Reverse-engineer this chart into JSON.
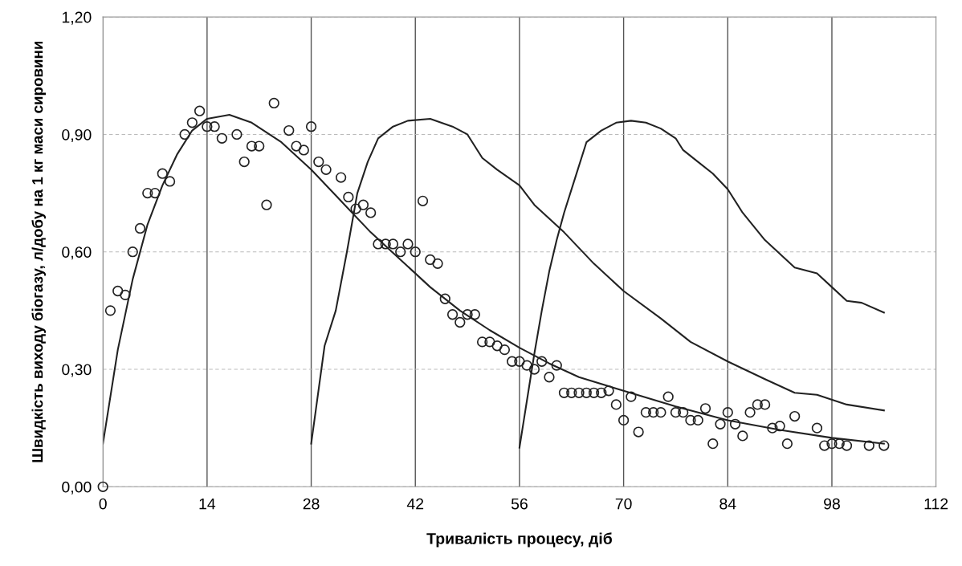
{
  "chart_data": {
    "type": "line",
    "xlabel": "Тривалість процесу, діб",
    "ylabel": "Швидкість виходу біогазу, л/добу на 1 кг маси сировини",
    "xlim": [
      0,
      112
    ],
    "ylim": [
      0,
      1.2
    ],
    "xticks": [
      0,
      14,
      28,
      42,
      56,
      70,
      84,
      98,
      112
    ],
    "yticks": [
      {
        "value": 0,
        "label": "0,00"
      },
      {
        "value": 0.3,
        "label": "0,30"
      },
      {
        "value": 0.6,
        "label": "0,60"
      },
      {
        "value": 0.9,
        "label": "0,90"
      },
      {
        "value": 1.2,
        "label": "1,20"
      }
    ],
    "grid": true,
    "series": [
      {
        "type": "scatter",
        "color": "#222222",
        "marker": "circle",
        "x": [
          0,
          1,
          2,
          3,
          4,
          5,
          6,
          7,
          8,
          9,
          11,
          12,
          13,
          14,
          15,
          16,
          18,
          19,
          20,
          21,
          22,
          23,
          25,
          26,
          27,
          28,
          29,
          30,
          32,
          33,
          34,
          35,
          36,
          37,
          38,
          39,
          40,
          41,
          42,
          43,
          44,
          45,
          46,
          47,
          48,
          49,
          50,
          51,
          52,
          53,
          54,
          55,
          56,
          57,
          58,
          59,
          60,
          61,
          62,
          63,
          64,
          65,
          66,
          67,
          68,
          69,
          70,
          71,
          72,
          73,
          74,
          75,
          76,
          77,
          78,
          79,
          80,
          81,
          82,
          83,
          84,
          85,
          86,
          87,
          88,
          89,
          90,
          91,
          92,
          93,
          96,
          97,
          98,
          99,
          100,
          103,
          105
        ],
        "values": [
          0,
          0.45,
          0.5,
          0.49,
          0.6,
          0.66,
          0.75,
          0.75,
          0.8,
          0.78,
          0.9,
          0.93,
          0.96,
          0.92,
          0.92,
          0.89,
          0.9,
          0.83,
          0.87,
          0.87,
          0.72,
          0.98,
          0.91,
          0.87,
          0.86,
          0.92,
          0.83,
          0.81,
          0.79,
          0.74,
          0.71,
          0.72,
          0.7,
          0.62,
          0.62,
          0.62,
          0.6,
          0.62,
          0.6,
          0.73,
          0.58,
          0.57,
          0.48,
          0.44,
          0.42,
          0.44,
          0.44,
          0.37,
          0.37,
          0.36,
          0.35,
          0.32,
          0.32,
          0.31,
          0.3,
          0.32,
          0.28,
          0.31,
          0.24,
          0.24,
          0.24,
          0.24,
          0.24,
          0.24,
          0.245,
          0.21,
          0.17,
          0.23,
          0.14,
          0.19,
          0.19,
          0.19,
          0.23,
          0.19,
          0.19,
          0.17,
          0.17,
          0.2,
          0.11,
          0.16,
          0.19,
          0.16,
          0.13,
          0.19,
          0.21,
          0.21,
          0.15,
          0.155,
          0.11,
          0.18,
          0.15,
          0.105,
          0.11,
          0.11,
          0.105,
          0.105,
          0.105
        ]
      },
      {
        "color": "#222222",
        "marker": "none",
        "line_style": "solid",
        "x": [
          0,
          2,
          4,
          6,
          8,
          10,
          12,
          14,
          17,
          20,
          24,
          28,
          32,
          36,
          40,
          44,
          48,
          52,
          56,
          60,
          64,
          70,
          77,
          84,
          91,
          98,
          105
        ],
        "values": [
          0.11,
          0.35,
          0.53,
          0.67,
          0.77,
          0.85,
          0.91,
          0.94,
          0.95,
          0.93,
          0.88,
          0.81,
          0.73,
          0.65,
          0.58,
          0.51,
          0.45,
          0.4,
          0.355,
          0.315,
          0.28,
          0.245,
          0.205,
          0.17,
          0.145,
          0.125,
          0.11
        ]
      },
      {
        "color": "#222222",
        "marker": "none",
        "line_style": "solid",
        "x": [
          28,
          29.8,
          31.3,
          32.8,
          34.2,
          35.6,
          37,
          39,
          41,
          44,
          47,
          49,
          51,
          53,
          56,
          58,
          62,
          66,
          70,
          75,
          79,
          84,
          89,
          93,
          96,
          100,
          105
        ],
        "values": [
          0.11,
          0.36,
          0.45,
          0.6,
          0.75,
          0.83,
          0.89,
          0.92,
          0.935,
          0.94,
          0.92,
          0.9,
          0.84,
          0.81,
          0.77,
          0.72,
          0.65,
          0.57,
          0.5,
          0.43,
          0.37,
          0.32,
          0.275,
          0.24,
          0.235,
          0.21,
          0.195
        ]
      },
      {
        "color": "#222222",
        "marker": "none",
        "line_style": "solid",
        "x": [
          56,
          57,
          58,
          59,
          60,
          61,
          62,
          63.5,
          65,
          67,
          69,
          71,
          73,
          75,
          77,
          78,
          80,
          82,
          84,
          86,
          89,
          93,
          96,
          98,
          100,
          102,
          105
        ],
        "values": [
          0.1,
          0.22,
          0.34,
          0.45,
          0.55,
          0.63,
          0.7,
          0.79,
          0.88,
          0.91,
          0.93,
          0.935,
          0.93,
          0.915,
          0.89,
          0.86,
          0.83,
          0.8,
          0.76,
          0.7,
          0.63,
          0.56,
          0.545,
          0.51,
          0.475,
          0.47,
          0.445
        ]
      }
    ]
  }
}
